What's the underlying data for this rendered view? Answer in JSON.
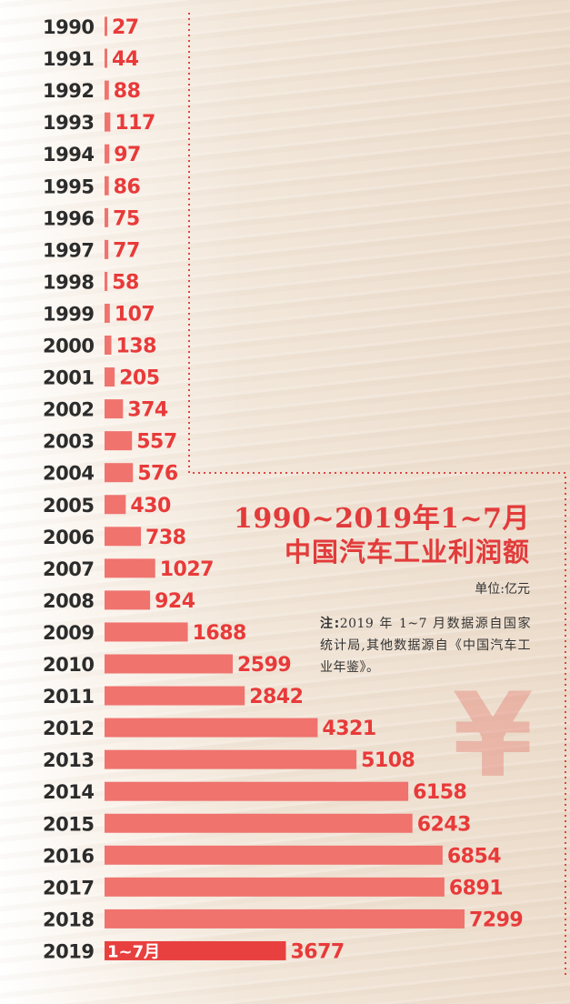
{
  "title_line1": "1990~2019年1~7月",
  "title_line2": "中国汽车工业利润额",
  "unit": "单位:亿元",
  "note_label": "注:",
  "note_text": "2019 年 1~7 月数据源自国家统计局,其他数据源自《中国汽车工业年鉴》。",
  "yen_icon": "¥",
  "colors": {
    "bar": "#f0736e",
    "bar_highlight": "#e8403f",
    "value_text": "#e83a3a",
    "year_text": "#2c2c2c",
    "dotted_line": "#e04545"
  },
  "chart_data": {
    "type": "bar",
    "orientation": "horizontal",
    "categories": [
      "1990",
      "1991",
      "1992",
      "1993",
      "1994",
      "1995",
      "1996",
      "1997",
      "1998",
      "1999",
      "2000",
      "2001",
      "2002",
      "2003",
      "2004",
      "2005",
      "2006",
      "2007",
      "2008",
      "2009",
      "2010",
      "2011",
      "2012",
      "2013",
      "2014",
      "2015",
      "2016",
      "2017",
      "2018",
      "2019"
    ],
    "values": [
      27,
      44,
      88,
      117,
      97,
      86,
      75,
      77,
      58,
      107,
      138,
      205,
      374,
      557,
      576,
      430,
      738,
      1027,
      924,
      1688,
      2599,
      2842,
      4321,
      5108,
      6158,
      6243,
      6854,
      6891,
      7299,
      3677
    ],
    "highlight": {
      "category": "2019",
      "inbar_label": "1~7月"
    },
    "title": "1990~2019年1~7月 中国汽车工业利润额",
    "unit": "亿元"
  }
}
